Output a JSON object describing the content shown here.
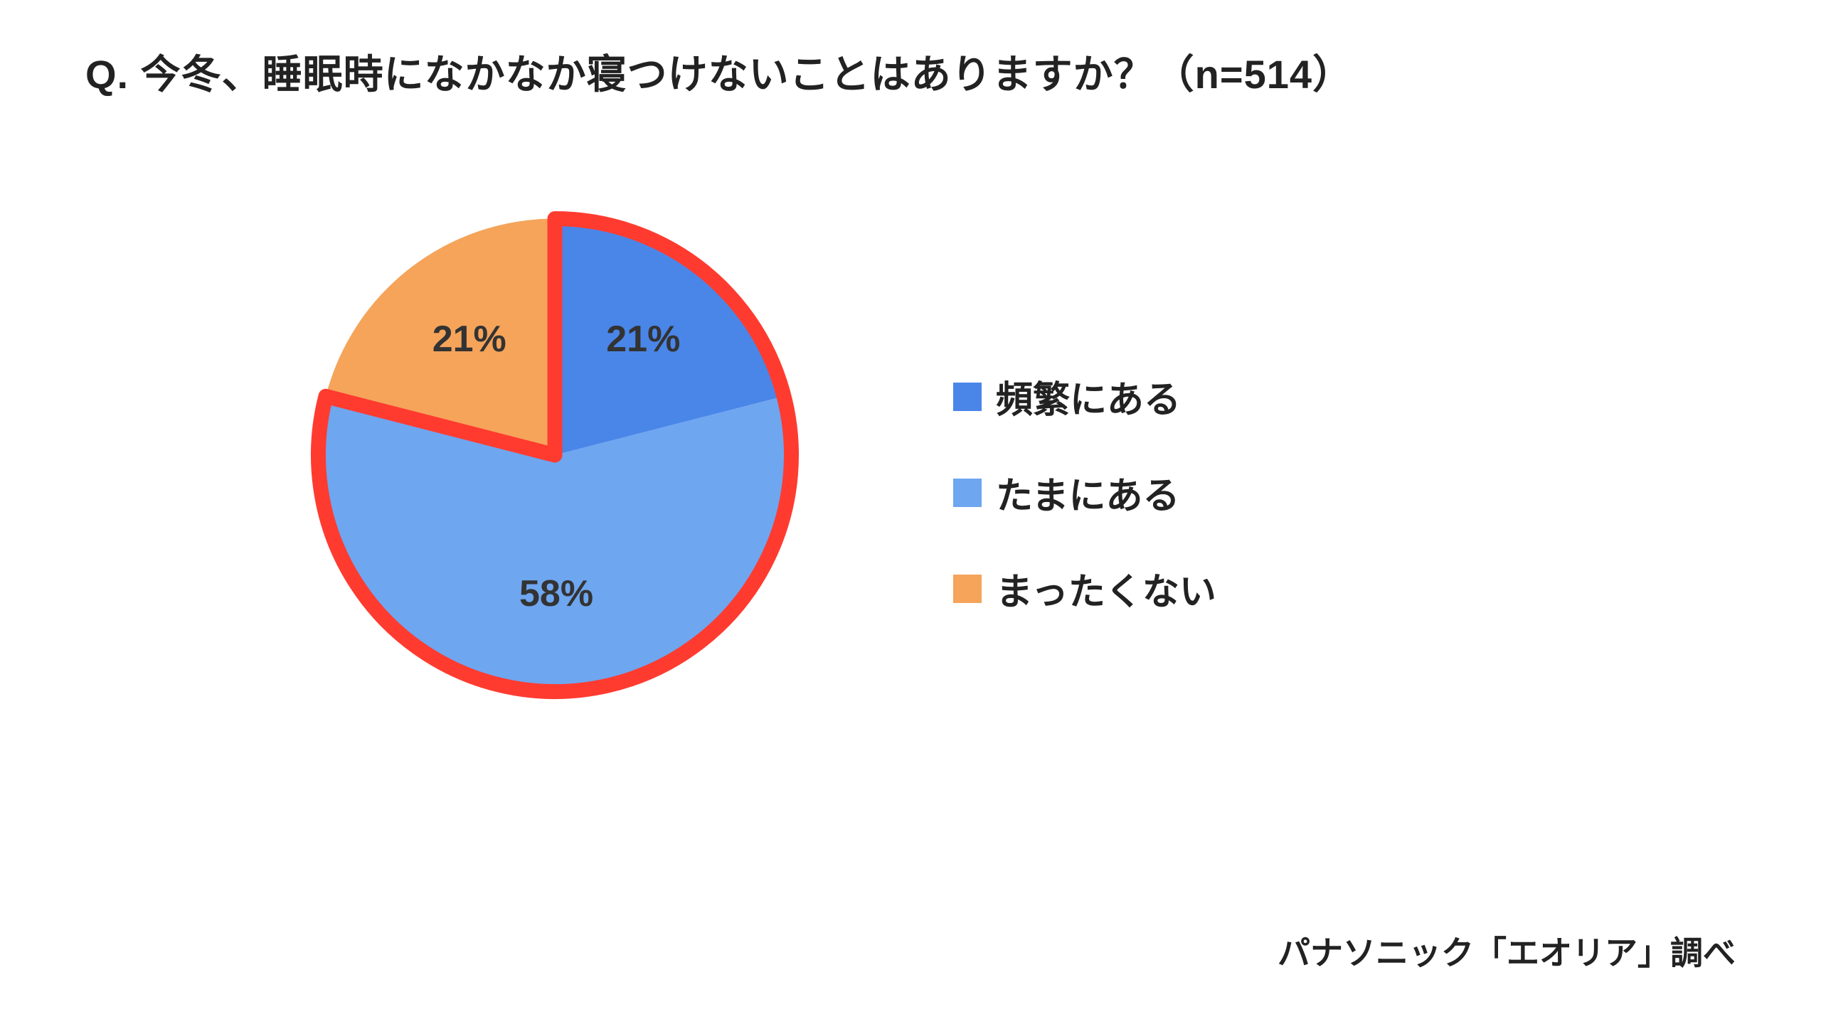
{
  "title": "Q. 今冬、睡眠時になかなか寝つけないことはありますか？（n=514）",
  "chart": {
    "type": "pie",
    "slices": [
      {
        "label": "頻繁にある",
        "value": 21,
        "value_label": "21%",
        "color": "#4a86e8",
        "highlighted": true
      },
      {
        "label": "たまにある",
        "value": 58,
        "value_label": "58%",
        "color": "#6ea6f0",
        "highlighted": true
      },
      {
        "label": "まったくない",
        "value": 21,
        "value_label": "21%",
        "color": "#f5a45a",
        "highlighted": false
      }
    ],
    "highlight_stroke_color": "#ff3b30",
    "highlight_stroke_width": 12,
    "background_color": "#ffffff",
    "label_fontsize": 52,
    "label_color": "#333333",
    "title_fontsize": 56,
    "title_color": "#222222",
    "start_angle_deg": -90
  },
  "legend": {
    "items": [
      {
        "label": "頻繁にある",
        "color": "#4a86e8"
      },
      {
        "label": "たまにある",
        "color": "#6ea6f0"
      },
      {
        "label": "まったくない",
        "color": "#f5a45a"
      }
    ],
    "swatch_size": 40,
    "fontsize": 52,
    "color": "#222222"
  },
  "credit": "パナソニック「エオリア」調べ"
}
